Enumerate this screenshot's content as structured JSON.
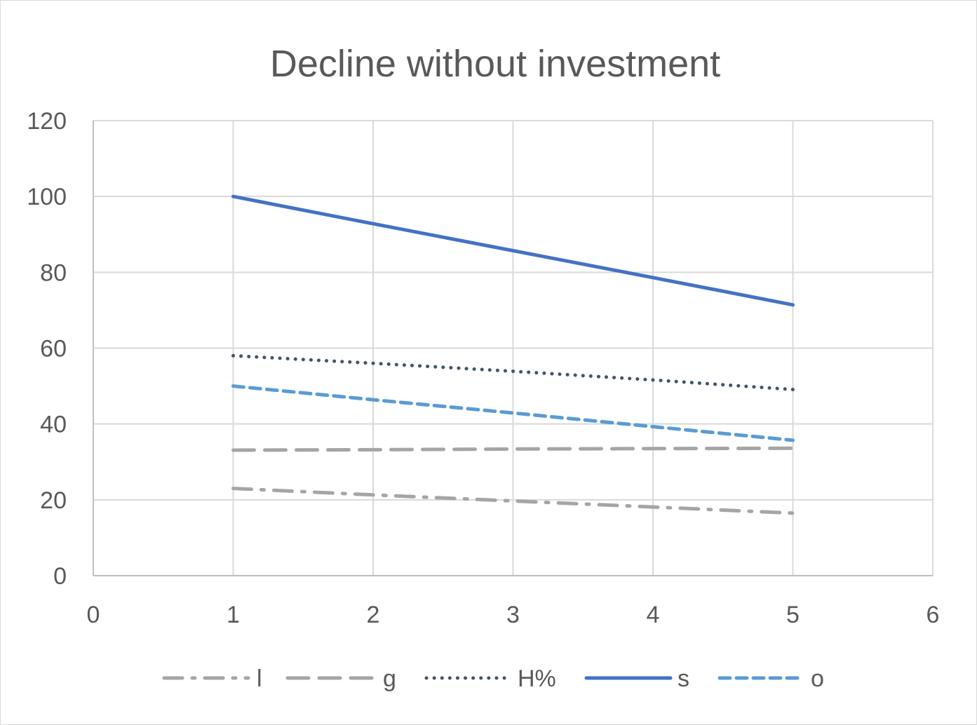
{
  "chart_data": {
    "type": "line",
    "title": "Decline without investment",
    "xlabel": "",
    "ylabel": "",
    "xlim": [
      0,
      6
    ],
    "ylim": [
      0,
      120
    ],
    "x_ticks": [
      "0",
      "1",
      "2",
      "3",
      "4",
      "5",
      "6"
    ],
    "y_ticks": [
      "0",
      "20",
      "40",
      "60",
      "80",
      "100",
      "120"
    ],
    "grid": true,
    "legend_position": "bottom",
    "x": [
      1,
      2,
      3,
      4,
      5
    ],
    "series": [
      {
        "name": "l",
        "values": [
          23,
          21.3,
          19.7,
          18.1,
          16.5
        ],
        "color": "#a5a5a5",
        "style": "dash-dot"
      },
      {
        "name": "g",
        "values": [
          33.1,
          33.2,
          33.4,
          33.5,
          33.6
        ],
        "color": "#a5a5a5",
        "style": "dash"
      },
      {
        "name": "H%",
        "values": [
          58,
          56,
          53.9,
          51.6,
          49.1
        ],
        "color": "#44546a",
        "style": "dot"
      },
      {
        "name": "s",
        "values": [
          100,
          92.8,
          85.7,
          78.6,
          71.4
        ],
        "color": "#4472c4",
        "style": "solid"
      },
      {
        "name": "o",
        "values": [
          50,
          46.4,
          42.9,
          39.3,
          35.7
        ],
        "color": "#5b9bd5",
        "style": "short-dash"
      }
    ]
  }
}
